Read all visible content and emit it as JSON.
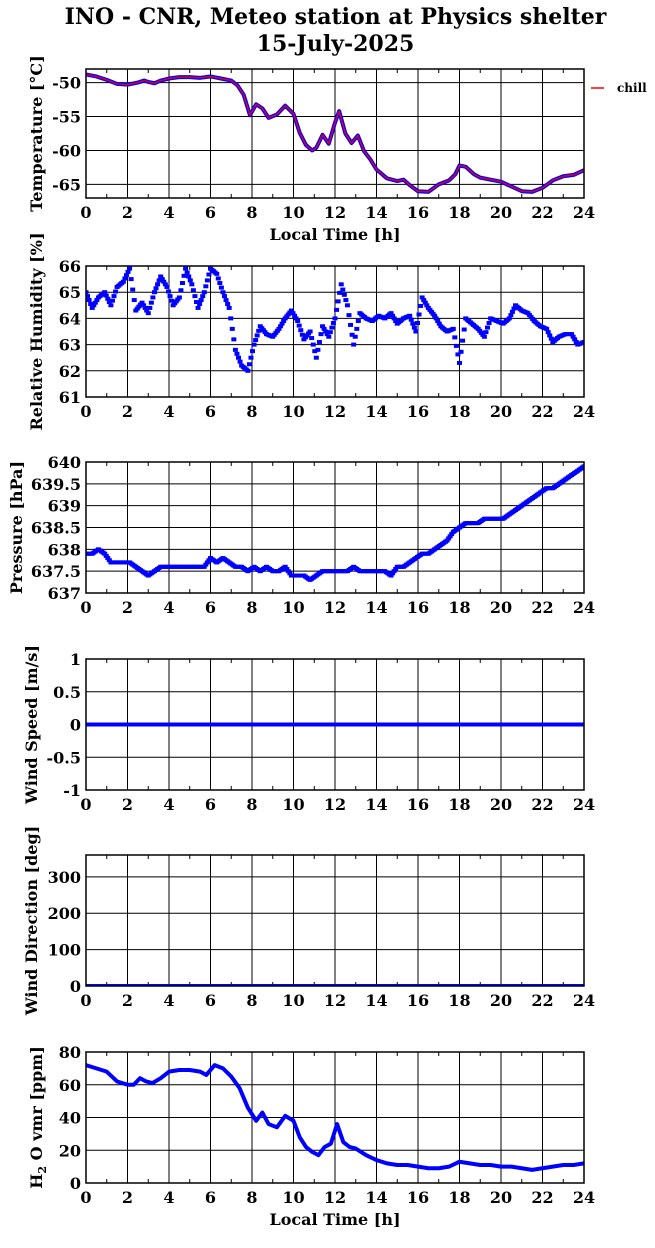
{
  "title": {
    "line1": "INO - CNR, Meteo station at Physics shelter",
    "line2": "15-July-2025"
  },
  "colors": {
    "chill": "#ff0000",
    "data": "#0000ff",
    "overlay": "#7f007f",
    "grid": "#000000"
  },
  "chart_data": [
    {
      "type": "line",
      "id": "temperature",
      "ylabel": "Temperature [°C]",
      "xlabel": "Local Time [h]",
      "xlim": [
        0,
        24
      ],
      "ylim": [
        -67,
        -48
      ],
      "yticks": [
        -50,
        -55,
        -60,
        -65
      ],
      "xticks": [
        0,
        2,
        4,
        6,
        8,
        10,
        12,
        14,
        16,
        18,
        20,
        22,
        24
      ],
      "grid": true,
      "legend": {
        "placement": "right",
        "entries": [
          "chill"
        ]
      },
      "series": [
        {
          "name": "chill",
          "x": [
            0,
            0.5,
            1,
            1.5,
            2,
            2.5,
            2.8,
            3,
            3.3,
            3.6,
            4,
            4.5,
            5,
            5.5,
            6,
            6.5,
            7,
            7.3,
            7.6,
            7.9,
            8.2,
            8.5,
            8.8,
            9.2,
            9.6,
            10,
            10.3,
            10.6,
            10.9,
            11.1,
            11.4,
            11.7,
            12,
            12.2,
            12.5,
            12.8,
            13.1,
            13.4,
            13.7,
            14,
            14.5,
            15,
            15.3,
            15.6,
            16,
            16.5,
            17,
            17.5,
            17.8,
            18,
            18.3,
            18.7,
            19,
            19.5,
            20,
            20.5,
            21,
            21.5,
            22,
            22.5,
            23,
            23.5,
            24
          ],
          "y": [
            -48.8,
            -49.1,
            -49.6,
            -50.2,
            -50.3,
            -50.0,
            -49.7,
            -49.9,
            -50.1,
            -49.7,
            -49.4,
            -49.2,
            -49.2,
            -49.3,
            -49.1,
            -49.4,
            -49.7,
            -50.4,
            -51.8,
            -54.8,
            -53.2,
            -53.8,
            -55.2,
            -54.7,
            -53.4,
            -54.6,
            -57.4,
            -59.2,
            -60.0,
            -59.6,
            -57.7,
            -59.0,
            -55.9,
            -54.2,
            -57.5,
            -58.9,
            -57.8,
            -60.1,
            -61.3,
            -62.8,
            -64.1,
            -64.5,
            -64.3,
            -65.1,
            -66.0,
            -66.1,
            -65.0,
            -64.4,
            -63.5,
            -62.2,
            -62.4,
            -63.5,
            -64.0,
            -64.3,
            -64.6,
            -65.3,
            -66.0,
            -66.1,
            -65.5,
            -64.4,
            -63.8,
            -63.6,
            -62.9
          ]
        }
      ]
    },
    {
      "type": "scatter",
      "id": "humidity",
      "ylabel": "Relative Humidity [%]",
      "xlim": [
        0,
        24
      ],
      "ylim": [
        61,
        66
      ],
      "yticks": [
        61,
        62,
        63,
        64,
        65,
        66
      ],
      "xticks": [
        0,
        2,
        4,
        6,
        8,
        10,
        12,
        14,
        16,
        18,
        20,
        22,
        24
      ],
      "grid": true,
      "series": [
        {
          "x": [
            0,
            0.3,
            0.6,
            0.9,
            1.2,
            1.5,
            1.8,
            2.1,
            2.4,
            2.7,
            3.0,
            3.3,
            3.6,
            3.9,
            4.2,
            4.5,
            4.8,
            5.1,
            5.4,
            5.7,
            6.0,
            6.3,
            6.6,
            6.9,
            7.2,
            7.5,
            7.8,
            8.1,
            8.4,
            8.7,
            9.0,
            9.3,
            9.6,
            9.9,
            10.2,
            10.5,
            10.8,
            11.1,
            11.4,
            11.7,
            12.0,
            12.3,
            12.6,
            12.9,
            13.2,
            13.5,
            13.8,
            14.1,
            14.4,
            14.7,
            15.0,
            15.3,
            15.6,
            15.9,
            16.2,
            16.5,
            16.8,
            17.1,
            17.4,
            17.7,
            18.0,
            18.3,
            18.6,
            18.9,
            19.2,
            19.5,
            19.8,
            20.1,
            20.4,
            20.7,
            21.0,
            21.3,
            21.6,
            21.9,
            22.2,
            22.5,
            22.8,
            23.1,
            23.4,
            23.7,
            24.0
          ],
          "y": [
            65.0,
            64.4,
            64.8,
            65.0,
            64.5,
            65.2,
            65.4,
            65.9,
            64.3,
            64.6,
            64.2,
            65.0,
            65.6,
            65.2,
            64.5,
            64.8,
            65.9,
            65.3,
            64.4,
            65.0,
            65.9,
            65.7,
            65.0,
            64.4,
            62.8,
            62.2,
            62.0,
            63.0,
            63.7,
            63.4,
            63.3,
            63.6,
            64.0,
            64.3,
            63.9,
            63.2,
            63.5,
            62.5,
            63.7,
            63.3,
            64.0,
            65.3,
            64.5,
            63.0,
            64.2,
            64.0,
            63.9,
            64.1,
            64.0,
            64.2,
            63.8,
            64.0,
            64.1,
            63.5,
            64.8,
            64.4,
            64.1,
            63.7,
            63.5,
            63.6,
            62.3,
            64.0,
            63.8,
            63.6,
            63.3,
            64.0,
            63.9,
            63.8,
            64.0,
            64.5,
            64.3,
            64.2,
            63.9,
            63.7,
            63.6,
            63.1,
            63.3,
            63.4,
            63.4,
            63.0,
            63.1
          ]
        }
      ]
    },
    {
      "type": "scatter",
      "id": "pressure",
      "ylabel": "Pressure [hPa]",
      "xlim": [
        0,
        24
      ],
      "ylim": [
        637,
        640
      ],
      "yticks": [
        637,
        637.5,
        638,
        638.5,
        639,
        639.5,
        640
      ],
      "xticks": [
        0,
        2,
        4,
        6,
        8,
        10,
        12,
        14,
        16,
        18,
        20,
        22,
        24
      ],
      "grid": true,
      "series": [
        {
          "x": [
            0,
            0.3,
            0.6,
            0.9,
            1.2,
            1.5,
            1.8,
            2.1,
            2.4,
            2.7,
            3.0,
            3.3,
            3.6,
            3.9,
            4.2,
            4.5,
            4.8,
            5.1,
            5.4,
            5.7,
            6.0,
            6.3,
            6.6,
            6.9,
            7.2,
            7.5,
            7.8,
            8.1,
            8.4,
            8.7,
            9.0,
            9.3,
            9.6,
            9.9,
            10.2,
            10.5,
            10.8,
            11.1,
            11.4,
            11.7,
            12.0,
            12.3,
            12.6,
            12.9,
            13.2,
            13.5,
            13.8,
            14.1,
            14.4,
            14.7,
            15.0,
            15.3,
            15.6,
            15.9,
            16.2,
            16.5,
            16.8,
            17.1,
            17.4,
            17.7,
            18.0,
            18.3,
            18.6,
            18.9,
            19.2,
            19.5,
            19.8,
            20.1,
            20.4,
            20.7,
            21.0,
            21.3,
            21.6,
            21.9,
            22.2,
            22.5,
            22.8,
            23.1,
            23.4,
            23.7,
            24.0
          ],
          "y": [
            637.9,
            637.9,
            638.0,
            637.9,
            637.7,
            637.7,
            637.7,
            637.7,
            637.6,
            637.5,
            637.4,
            637.5,
            637.6,
            637.6,
            637.6,
            637.6,
            637.6,
            637.6,
            637.6,
            637.6,
            637.8,
            637.7,
            637.8,
            637.7,
            637.6,
            637.6,
            637.5,
            637.6,
            637.5,
            637.6,
            637.5,
            637.5,
            637.6,
            637.4,
            637.4,
            637.4,
            637.3,
            637.4,
            637.5,
            637.5,
            637.5,
            637.5,
            637.5,
            637.6,
            637.5,
            637.5,
            637.5,
            637.5,
            637.5,
            637.4,
            637.6,
            637.6,
            637.7,
            637.8,
            637.9,
            637.9,
            638.0,
            638.1,
            638.2,
            638.4,
            638.5,
            638.6,
            638.6,
            638.6,
            638.7,
            638.7,
            638.7,
            638.7,
            638.8,
            638.9,
            639.0,
            639.1,
            639.2,
            639.3,
            639.4,
            639.4,
            639.5,
            639.6,
            639.7,
            639.8,
            639.9
          ]
        }
      ]
    },
    {
      "type": "line",
      "id": "wind-speed",
      "ylabel": "Wind Speed [m/s]",
      "xlim": [
        0,
        24
      ],
      "ylim": [
        -1,
        1
      ],
      "yticks": [
        -1,
        -0.5,
        0,
        0.5,
        1
      ],
      "xticks": [
        0,
        2,
        4,
        6,
        8,
        10,
        12,
        14,
        16,
        18,
        20,
        22,
        24
      ],
      "grid": true,
      "series": [
        {
          "x": [
            0,
            24
          ],
          "y": [
            0,
            0
          ]
        }
      ]
    },
    {
      "type": "line",
      "id": "wind-direction",
      "ylabel": "Wind Direction [deg]",
      "xlim": [
        0,
        24
      ],
      "ylim": [
        0,
        360
      ],
      "yticks": [
        0,
        100,
        200,
        300
      ],
      "xticks": [
        0,
        2,
        4,
        6,
        8,
        10,
        12,
        14,
        16,
        18,
        20,
        22,
        24
      ],
      "grid": true,
      "series": [
        {
          "x": [
            0,
            24
          ],
          "y": [
            0,
            0
          ]
        }
      ]
    },
    {
      "type": "line",
      "id": "h2o-vmr",
      "ylabel": "H2O vmr [ppm]",
      "xlabel": "Local Time [h]",
      "xlim": [
        0,
        24
      ],
      "ylim": [
        0,
        80
      ],
      "yticks": [
        0,
        20,
        40,
        60,
        80
      ],
      "xticks": [
        0,
        2,
        4,
        6,
        8,
        10,
        12,
        14,
        16,
        18,
        20,
        22,
        24
      ],
      "grid": true,
      "series": [
        {
          "x": [
            0,
            0.5,
            1,
            1.5,
            2,
            2.3,
            2.6,
            2.9,
            3.2,
            3.6,
            4,
            4.5,
            5,
            5.5,
            5.8,
            6.2,
            6.6,
            7,
            7.4,
            7.8,
            8.2,
            8.5,
            8.8,
            9.2,
            9.6,
            10,
            10.3,
            10.6,
            10.9,
            11.2,
            11.5,
            11.8,
            12.1,
            12.4,
            12.7,
            13,
            13.5,
            14,
            14.5,
            15,
            15.5,
            16,
            16.5,
            17,
            17.5,
            18,
            18.5,
            19,
            19.5,
            20,
            20.5,
            21,
            21.5,
            22,
            22.5,
            23,
            23.5,
            24
          ],
          "y": [
            72,
            70,
            68,
            62,
            60,
            60,
            64,
            62,
            61,
            64,
            68,
            69,
            69,
            68,
            66,
            72,
            70,
            65,
            58,
            46,
            38,
            43,
            36,
            34,
            41,
            38,
            28,
            22,
            19,
            17,
            22,
            24,
            36,
            25,
            22,
            21,
            17,
            14,
            12,
            11,
            11,
            10,
            9,
            9,
            10,
            13,
            12,
            11,
            11,
            10,
            10,
            9,
            8,
            9,
            10,
            11,
            11,
            12
          ]
        }
      ]
    }
  ]
}
